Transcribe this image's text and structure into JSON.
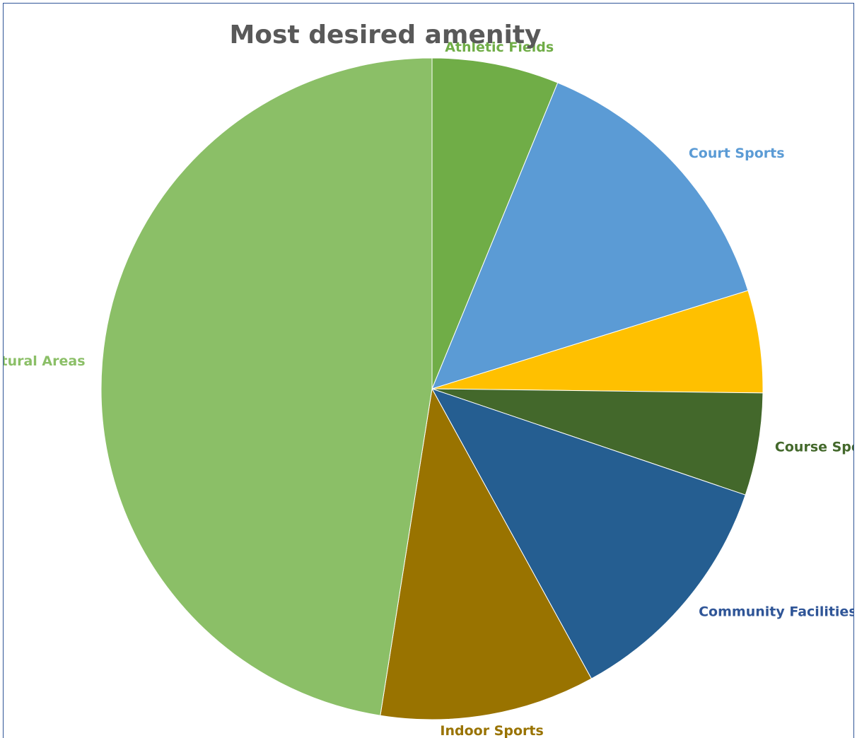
{
  "chart_data": {
    "type": "pie",
    "title": "Most desired amenity",
    "slices": [
      {
        "label": "Athletic Fields",
        "value": 6.2,
        "color": "#70ad47",
        "label_color": "#70ad47"
      },
      {
        "label": "Court Sports",
        "value": 14.0,
        "color": "#5b9bd5",
        "label_color": "#5b9bd5"
      },
      {
        "label": "",
        "value": 5.0,
        "color": "#ffc000",
        "label_color": "#ffc000"
      },
      {
        "label": "Course Sports",
        "value": 5.0,
        "color": "#43682b",
        "label_color": "#43682b"
      },
      {
        "label": "Community Facilities",
        "value": 11.8,
        "color": "#255e91",
        "label_color": "#2f5597"
      },
      {
        "label": "Indoor Sports",
        "value": 10.5,
        "color": "#997300",
        "label_color": "#997300"
      },
      {
        "label": "Natural Areas",
        "value": 47.5,
        "color": "#8bbf67",
        "label_color": "#8bbf67"
      }
    ]
  }
}
